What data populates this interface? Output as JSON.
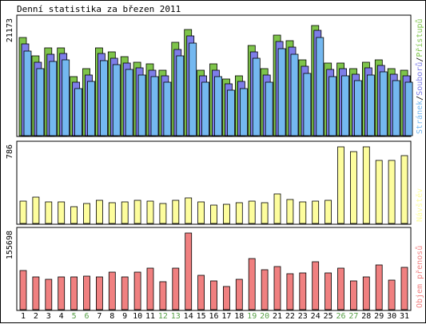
{
  "title": "Denní statistika za březen 2011",
  "colors": {
    "pristupu": "#7ec44a",
    "souboru": "#7d7de8",
    "stranek": "#74b8f0",
    "navstev": "#fdfd9d",
    "objem": "#f08080",
    "weekend_label": "#58a048",
    "weekday_label": "#000000"
  },
  "chart_data": [
    {
      "type": "bar",
      "ytick": "21173",
      "legend": [
        {
          "text": "Stránek",
          "color": "#74b8f0"
        },
        {
          "text": "/",
          "color": "#000000"
        },
        {
          "text": "Souborů",
          "color": "#7d7de8"
        },
        {
          "text": "/",
          "color": "#000000"
        },
        {
          "text": "Přístupů",
          "color": "#7ec44a"
        }
      ],
      "ylim": [
        0,
        21173
      ],
      "categories": [
        "1",
        "2",
        "3",
        "4",
        "5",
        "6",
        "7",
        "8",
        "9",
        "10",
        "11",
        "12",
        "13",
        "14",
        "15",
        "16",
        "17",
        "18",
        "19",
        "20",
        "21",
        "22",
        "23",
        "24",
        "25",
        "26",
        "27",
        "28",
        "29",
        "30",
        "31"
      ],
      "weekend": [
        5,
        6,
        12,
        13,
        19,
        20,
        26,
        27
      ],
      "series": [
        {
          "key": "pristupu",
          "values": [
            18850,
            15300,
            16850,
            16950,
            11300,
            12900,
            16950,
            16150,
            15150,
            14150,
            13750,
            12650,
            17950,
            20350,
            12650,
            13750,
            10950,
            11550,
            17350,
            12900,
            19350,
            18250,
            14500,
            21173,
            13950,
            13950,
            12950,
            14100,
            14650,
            12950,
            12650
          ]
        },
        {
          "key": "souboru",
          "values": [
            18250,
            14750,
            16250,
            16350,
            10950,
            12300,
            16350,
            15550,
            14650,
            13650,
            13250,
            12150,
            17250,
            19750,
            12150,
            13250,
            10600,
            11050,
            16750,
            12300,
            18750,
            17650,
            13950,
            20850,
            13350,
            13450,
            12450,
            13600,
            14150,
            12450,
            12150
          ]
        },
        {
          "key": "stranek",
          "values": [
            17450,
            14050,
            15550,
            15750,
            10350,
            11650,
            15650,
            14850,
            13950,
            12950,
            12550,
            11450,
            16550,
            19050,
            11450,
            12550,
            9950,
            10350,
            16050,
            11550,
            17950,
            16950,
            13150,
            20050,
            12600,
            12750,
            11750,
            12850,
            13450,
            11750,
            11450
          ]
        }
      ]
    },
    {
      "type": "bar",
      "ytick": "786",
      "legend": [
        {
          "text": "Návštěv",
          "color": "#fdfd9d"
        }
      ],
      "ylim": [
        0,
        786
      ],
      "categories": [
        "1",
        "2",
        "3",
        "4",
        "5",
        "6",
        "7",
        "8",
        "9",
        "10",
        "11",
        "12",
        "13",
        "14",
        "15",
        "16",
        "17",
        "18",
        "19",
        "20",
        "21",
        "22",
        "23",
        "24",
        "25",
        "26",
        "27",
        "28",
        "29",
        "30",
        "31"
      ],
      "series": [
        {
          "key": "navstev",
          "values": [
            233,
            272,
            220,
            225,
            173,
            204,
            237,
            216,
            218,
            239,
            230,
            206,
            240,
            265,
            221,
            192,
            196,
            216,
            233,
            210,
            304,
            243,
            221,
            230,
            238,
            786,
            734,
            786,
            648,
            645,
            694
          ]
        }
      ]
    },
    {
      "type": "bar",
      "ytick": "155698",
      "legend": [
        {
          "text": "Objem přenosů",
          "color": "#f08080"
        }
      ],
      "ylim": [
        0,
        155698
      ],
      "categories": [
        "1",
        "2",
        "3",
        "4",
        "5",
        "6",
        "7",
        "8",
        "9",
        "10",
        "11",
        "12",
        "13",
        "14",
        "15",
        "16",
        "17",
        "18",
        "19",
        "20",
        "21",
        "22",
        "23",
        "24",
        "25",
        "26",
        "27",
        "28",
        "29",
        "30",
        "31"
      ],
      "series": [
        {
          "key": "objem",
          "values": [
            79600,
            66200,
            61600,
            66200,
            66200,
            68000,
            66200,
            75800,
            66200,
            75800,
            84400,
            56200,
            84400,
            155698,
            70200,
            58200,
            46800,
            62400,
            104400,
            80400,
            87000,
            72800,
            73800,
            96800,
            74800,
            84400,
            58200,
            65800,
            91600,
            59600,
            85200
          ]
        }
      ]
    }
  ]
}
